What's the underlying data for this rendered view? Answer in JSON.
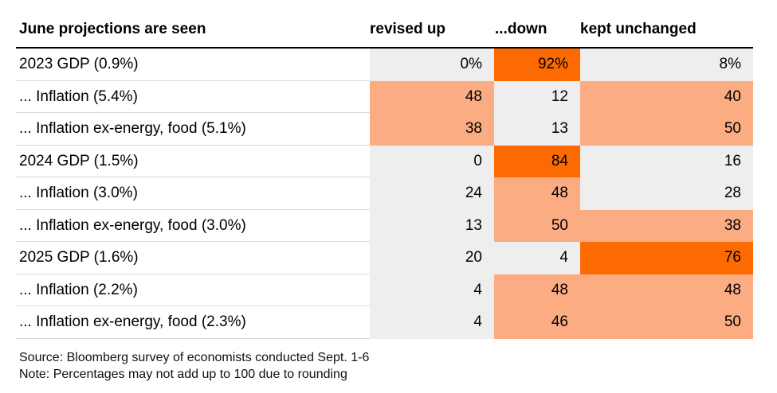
{
  "chart_data": {
    "type": "table",
    "title": "",
    "header": {
      "label_col": "June projections are seen",
      "columns": [
        "revised up",
        "...down",
        "kept unchanged"
      ]
    },
    "rows": [
      {
        "label": "2023 GDP (0.9%)",
        "values": [
          0,
          92,
          8
        ],
        "display": [
          "0%",
          "92%",
          "8%"
        ]
      },
      {
        "label": "... Inflation (5.4%)",
        "values": [
          48,
          12,
          40
        ],
        "display": [
          "48",
          "12",
          "40"
        ]
      },
      {
        "label": "... Inflation ex-energy, food (5.1%)",
        "values": [
          38,
          13,
          50
        ],
        "display": [
          "38",
          "13",
          "50"
        ]
      },
      {
        "label": "2024 GDP (1.5%)",
        "values": [
          0,
          84,
          16
        ],
        "display": [
          "0",
          "84",
          "16"
        ]
      },
      {
        "label": "... Inflation (3.0%)",
        "values": [
          24,
          48,
          28
        ],
        "display": [
          "24",
          "48",
          "28"
        ]
      },
      {
        "label": "... Inflation ex-energy, food (3.0%)",
        "values": [
          13,
          50,
          38
        ],
        "display": [
          "13",
          "50",
          "38"
        ]
      },
      {
        "label": "2025 GDP (1.6%)",
        "values": [
          20,
          4,
          76
        ],
        "display": [
          "20",
          "4",
          "76"
        ]
      },
      {
        "label": "... Inflation (2.2%)",
        "values": [
          4,
          48,
          48
        ],
        "display": [
          "4",
          "48",
          "48"
        ]
      },
      {
        "label": "... Inflation ex-energy, food (2.3%)",
        "values": [
          4,
          46,
          50
        ],
        "display": [
          "4",
          "46",
          "50"
        ]
      }
    ],
    "color_scale": {
      "low": "#eeeeee",
      "mid": "#fcac83",
      "high": "#fd6a02"
    }
  },
  "footer": {
    "source": "Source: Bloomberg survey of economists conducted Sept. 1-6",
    "note": "Note: Percentages may not add up to 100 due to rounding"
  }
}
